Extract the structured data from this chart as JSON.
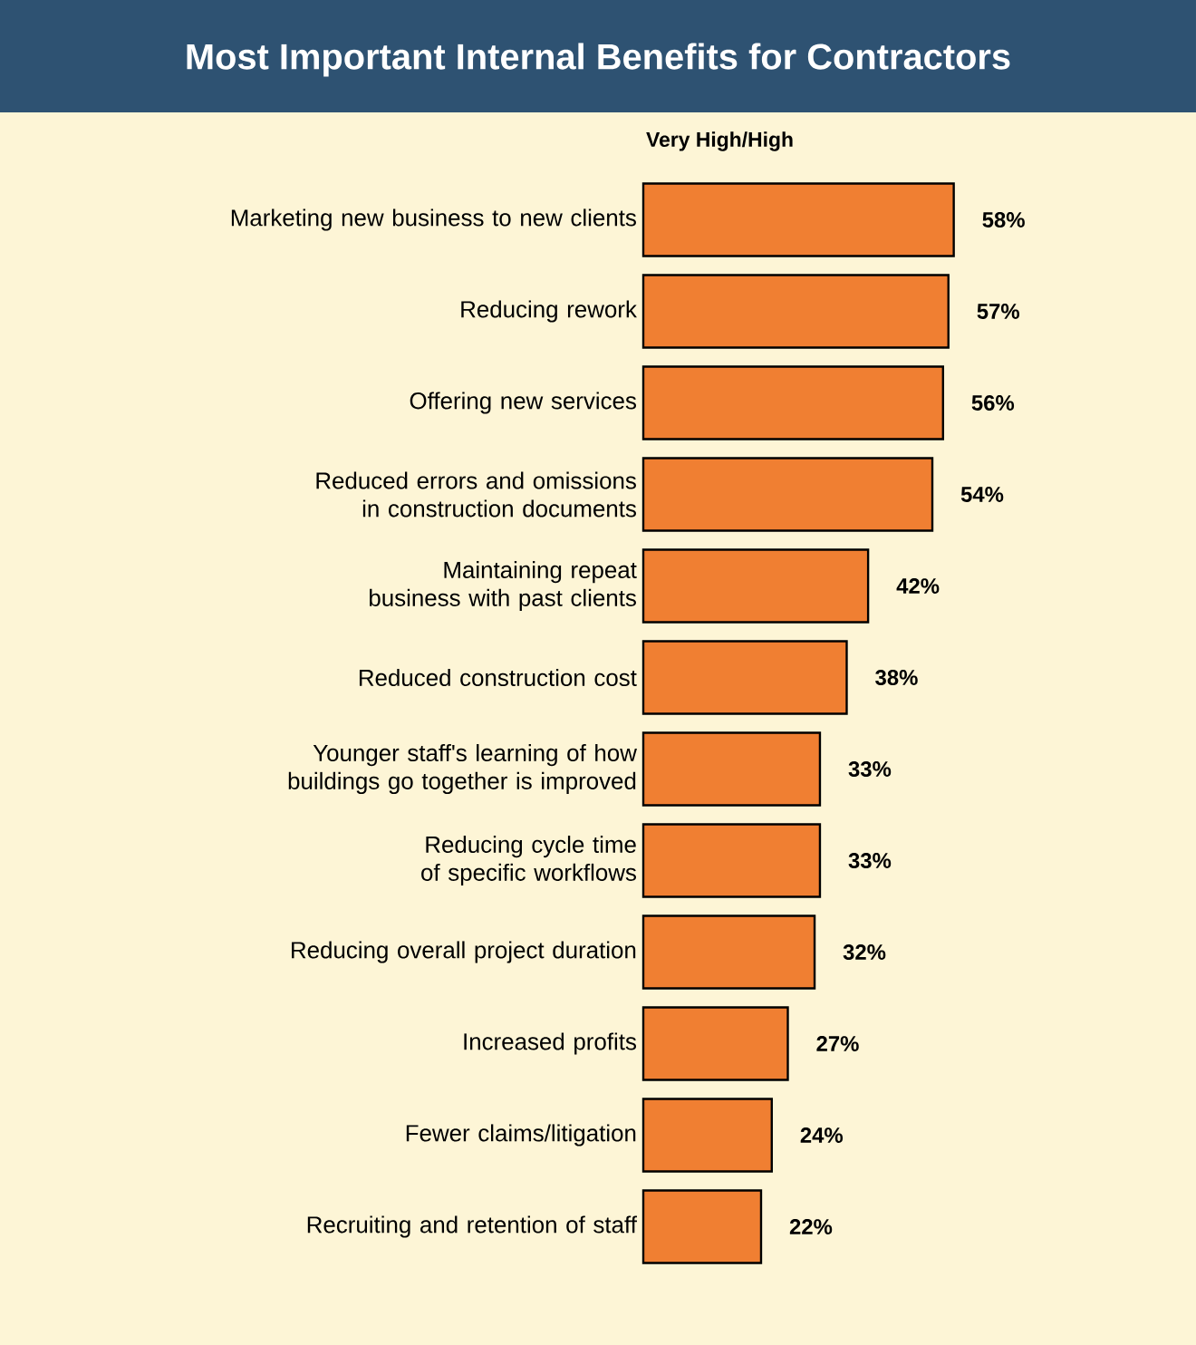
{
  "chart_data": {
    "type": "bar",
    "orientation": "horizontal",
    "title": "Most Important Internal Benefits for Contractors",
    "subtitle": "Very High/High",
    "categories": [
      "Marketing new business to new clients",
      "Reducing rework",
      "Offering new services",
      "Reduced errors and omissions in construction documents",
      "Maintaining repeat business with past clients",
      "Reduced construction cost",
      "Younger staff's learning of how buildings go together is improved",
      "Reducing cycle time of specific workflows",
      "Reducing overall project duration",
      "Increased profits",
      "Fewer claims/litigation",
      "Recruiting and retention of staff"
    ],
    "values": [
      58,
      57,
      56,
      54,
      42,
      38,
      33,
      33,
      32,
      27,
      24,
      22
    ],
    "value_labels": [
      "58%",
      "57%",
      "56%",
      "54%",
      "42%",
      "38%",
      "33%",
      "33%",
      "32%",
      "27%",
      "24%",
      "22%"
    ],
    "color": "#f07f32"
  }
}
